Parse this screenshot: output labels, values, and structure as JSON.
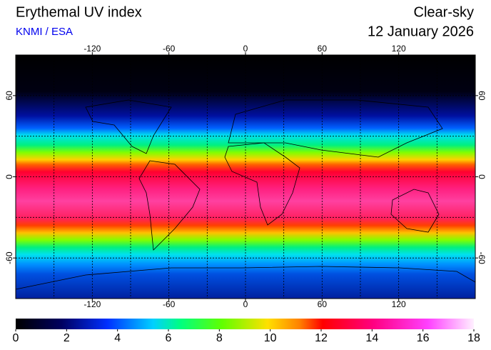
{
  "header": {
    "title": "Erythemal UV index",
    "source": "KNMI / ESA",
    "condition": "Clear-sky",
    "date": "12 January 2026"
  },
  "map": {
    "lon_range": [
      -180,
      180
    ],
    "lat_range": [
      90,
      -90
    ],
    "lon_ticks": [
      -120,
      -60,
      0,
      60,
      120
    ],
    "lat_ticks": [
      60,
      0,
      -60
    ]
  },
  "colorbar": {
    "range": [
      0,
      18
    ],
    "ticks": [
      0,
      2,
      4,
      6,
      8,
      10,
      12,
      14,
      16,
      18
    ]
  }
}
